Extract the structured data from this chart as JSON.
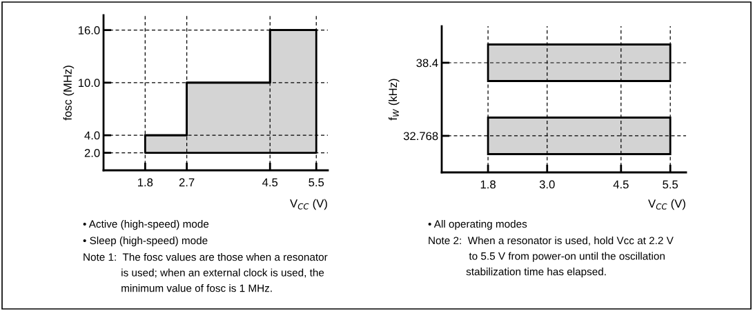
{
  "chart_data": [
    {
      "type": "step",
      "ylabel": "fosc (MHz)",
      "xlabel": "V$_{CC}$ (V)",
      "series": [
        {
          "x": [
            1.8,
            2.7,
            4.5,
            5.5
          ],
          "values": [
            4.0,
            10.0,
            16.0,
            16.0
          ],
          "lower": [
            2.0,
            2.0,
            2.0,
            2.0
          ],
          "upper": [
            4.0,
            10.0,
            16.0,
            16.0
          ],
          "color": "#000000"
        }
      ],
      "xlim": [
        0.9,
        5.75
      ],
      "xticks": [
        1.8,
        2.7,
        4.5,
        5.5
      ],
      "ylim": [
        0,
        17.7
      ],
      "yticks": [
        {
          "value": 2,
          "label": "2.0"
        },
        {
          "value": 4,
          "label": "4.0"
        },
        {
          "value": 10,
          "label": "10.0"
        },
        {
          "value": 16,
          "label": "16.0"
        }
      ],
      "grid": true,
      "annotations": [
        "• Active (high-speed) mode",
        "• Sleep (high-speed) mode",
        "Note 1:  The fosc values are those when a resonator\n             is used; when an external clock is used, the\n             minimum value of fosc is 1 MHz."
      ]
    },
    {
      "type": "bar",
      "orientation": "horizontal",
      "ylabel": "f$_{W}$ (kHz)",
      "xlabel": "V$_{CC}$ (V)",
      "categories": [
        "38.4",
        "32.768"
      ],
      "base": [
        1.8,
        1.8
      ],
      "values": [
        3.7,
        3.7
      ],
      "color": "#d3d3d3",
      "xlim": [
        0.86,
        5.82
      ],
      "xticks": [
        1.8,
        {
          "value": 3,
          "label": "3.0"
        },
        4.5,
        5.5
      ],
      "grid": true,
      "annotations": [
        "• All operating modes",
        "Note 2:  When a resonator is used, hold Vcc at 2.2 V\n              to 5.5 V from power-on until the oscillation\n             stabilization time has elapsed."
      ]
    }
  ]
}
